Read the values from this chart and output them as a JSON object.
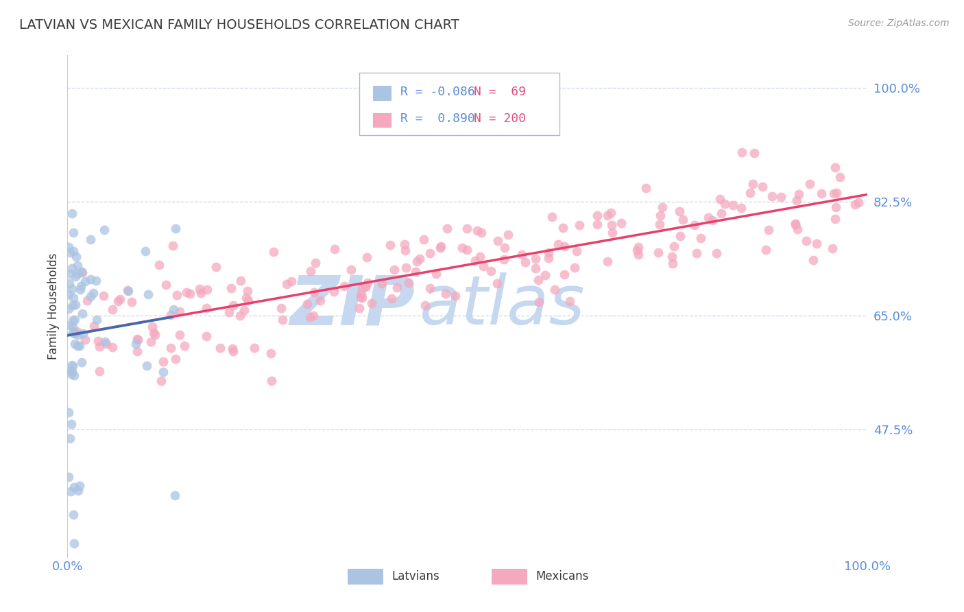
{
  "title": "LATVIAN VS MEXICAN FAMILY HOUSEHOLDS CORRELATION CHART",
  "source": "Source: ZipAtlas.com",
  "ylabel": "Family Households",
  "xmin": 0.0,
  "xmax": 1.0,
  "ymin": 0.28,
  "ymax": 1.05,
  "yticks": [
    0.475,
    0.65,
    0.825,
    1.0
  ],
  "ytick_labels": [
    "47.5%",
    "65.0%",
    "82.5%",
    "100.0%"
  ],
  "latvian_R": -0.086,
  "latvian_N": 69,
  "mexican_R": 0.89,
  "mexican_N": 200,
  "latvian_color": "#aac4e2",
  "mexican_color": "#f5a8be",
  "latvian_line_color_solid": "#3a6db5",
  "latvian_line_color_dash": "#a8c8e8",
  "mexican_line_color": "#e8406a",
  "title_color": "#3a3a3a",
  "axis_label_color": "#3a3a3a",
  "tick_label_color": "#5b8dd9",
  "grid_color": "#c8d4e8",
  "legend_latvian_color": "#aac4e2",
  "legend_mexican_color": "#f5a8be",
  "watermark_zip_color": "#c5d8f0",
  "watermark_atlas_color": "#c5d8f0",
  "dot_size": 100,
  "dot_alpha": 0.75
}
